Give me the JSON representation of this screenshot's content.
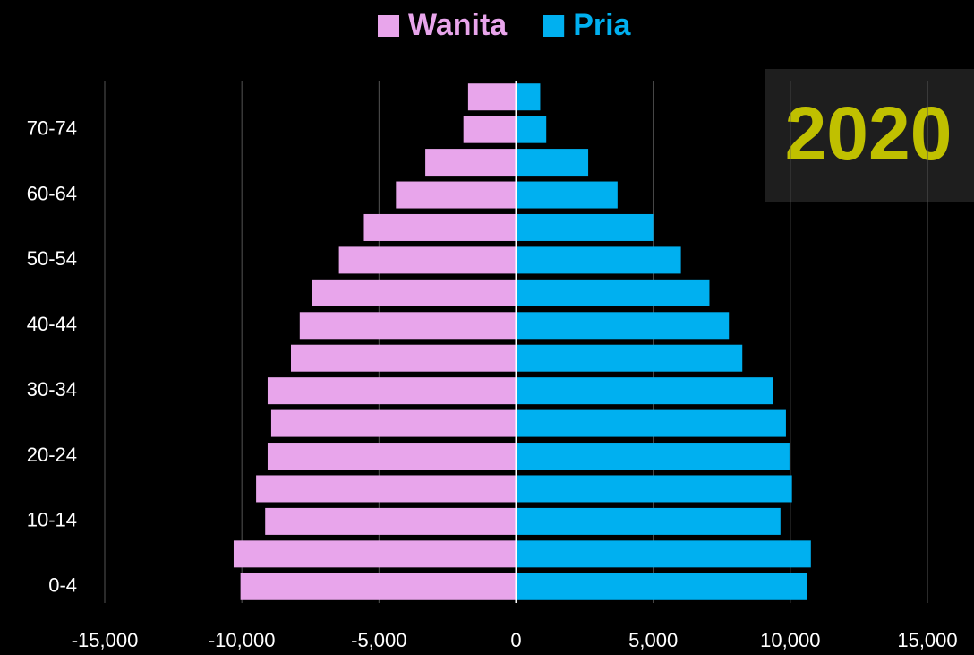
{
  "chart_data": {
    "type": "population-pyramid",
    "annotation": "2020",
    "categories": [
      "0-4",
      null,
      "10-14",
      null,
      "20-24",
      null,
      "30-34",
      null,
      "40-44",
      null,
      "50-54",
      null,
      "60-64",
      null,
      "70-74",
      null
    ],
    "series": [
      {
        "name": "Wanita",
        "color": "#e8a5eb",
        "values": [
          -10050,
          -10300,
          -9150,
          -9480,
          -9060,
          -8930,
          -9060,
          -8210,
          -7890,
          -7440,
          -6460,
          -5550,
          -4380,
          -3310,
          -1920,
          -1750
        ]
      },
      {
        "name": "Pria",
        "color": "#00b0f0",
        "values": [
          10620,
          10750,
          9640,
          10060,
          9970,
          9840,
          9380,
          8250,
          7760,
          7050,
          6010,
          5000,
          3700,
          2630,
          1100,
          880
        ]
      }
    ],
    "xlim": [
      -15000,
      15000
    ],
    "xticks": [
      {
        "value": -15000,
        "label": "-15,000"
      },
      {
        "value": -10000,
        "label": "-10,000"
      },
      {
        "value": -5000,
        "label": "-5,000"
      },
      0,
      {
        "value": 5000,
        "label": "5,000"
      },
      {
        "value": 10000,
        "label": "10,000"
      },
      {
        "value": 15000,
        "label": "15,000"
      }
    ],
    "grid": true,
    "legend": "top"
  }
}
